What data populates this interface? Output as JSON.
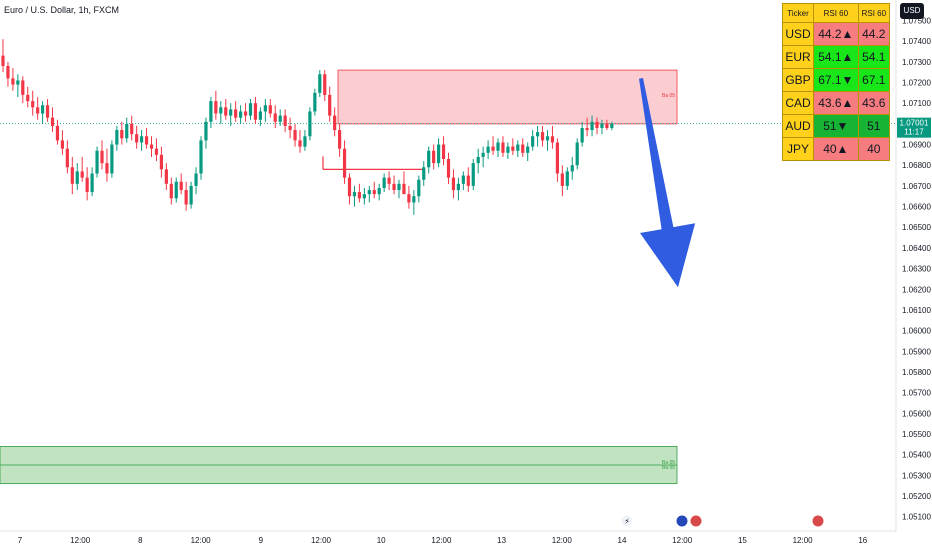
{
  "symbol_title": "Euro / U.S. Dollar, 1h, FXCM",
  "currency_button": "USD",
  "rsi_table": {
    "headers": [
      "Ticker",
      "RSI 60",
      "RSI 60"
    ],
    "rows": [
      {
        "ticker": "USD",
        "rsi1": "44.2▲",
        "rsi2": "44.2",
        "color": "red"
      },
      {
        "ticker": "EUR",
        "rsi1": "54.1▲",
        "rsi2": "54.1",
        "color": "lime"
      },
      {
        "ticker": "GBP",
        "rsi1": "67.1▼",
        "rsi2": "67.1",
        "color": "lime"
      },
      {
        "ticker": "CAD",
        "rsi1": "43.6▲",
        "rsi2": "43.6",
        "color": "red"
      },
      {
        "ticker": "AUD",
        "rsi1": "51▼",
        "rsi2": "51",
        "color": "green"
      },
      {
        "ticker": "JPY",
        "rsi1": "40▲",
        "rsi2": "40",
        "color": "red"
      }
    ]
  },
  "chart_data": {
    "type": "candlestick",
    "y_range": [
      1.0506,
      1.0757
    ],
    "y_ticks": [
      "1.07500",
      "1.07400",
      "1.07300",
      "1.07200",
      "1.07100",
      "1.06900",
      "1.06800",
      "1.06700",
      "1.06600",
      "1.06500",
      "1.06400",
      "1.06300",
      "1.06200",
      "1.06100",
      "1.06000",
      "1.05900",
      "1.05800",
      "1.05700",
      "1.05600",
      "1.05500",
      "1.05400",
      "1.05300",
      "1.05200",
      "1.05100"
    ],
    "x_ticks": [
      "7",
      "12:00",
      "8",
      "12:00",
      "9",
      "12:00",
      "10",
      "12:00",
      "13",
      "12:00",
      "14",
      "12:00",
      "15",
      "12:00",
      "16"
    ],
    "current_price": {
      "value": "1.07001",
      "countdown": "11:17",
      "level": 1.07001
    },
    "supply_zone": {
      "label": "Ba 05",
      "top": 1.0726,
      "bottom": 1.07
    },
    "demand_zone": {
      "labels": [
        "Ba 05",
        "Ba 05"
      ],
      "top": 1.0544,
      "bottom": 1.0526,
      "mid": 1.0535
    },
    "support_line": 1.0678,
    "arrow": {
      "from": 1.0722,
      "to": 1.0621
    },
    "candles": [
      {
        "o": 1.0733,
        "h": 1.0741,
        "l": 1.0725,
        "c": 1.0728
      },
      {
        "o": 1.0728,
        "h": 1.073,
        "l": 1.0718,
        "c": 1.0722
      },
      {
        "o": 1.0722,
        "h": 1.0727,
        "l": 1.0716,
        "c": 1.0719
      },
      {
        "o": 1.0719,
        "h": 1.0724,
        "l": 1.0713,
        "c": 1.0721
      },
      {
        "o": 1.0721,
        "h": 1.0723,
        "l": 1.071,
        "c": 1.0714
      },
      {
        "o": 1.0714,
        "h": 1.0718,
        "l": 1.0708,
        "c": 1.0711
      },
      {
        "o": 1.0711,
        "h": 1.0716,
        "l": 1.0704,
        "c": 1.0708
      },
      {
        "o": 1.0708,
        "h": 1.0713,
        "l": 1.0702,
        "c": 1.0705
      },
      {
        "o": 1.0705,
        "h": 1.0711,
        "l": 1.07,
        "c": 1.0709
      },
      {
        "o": 1.0709,
        "h": 1.0712,
        "l": 1.0701,
        "c": 1.0703
      },
      {
        "o": 1.0703,
        "h": 1.0708,
        "l": 1.0696,
        "c": 1.0699
      },
      {
        "o": 1.0699,
        "h": 1.0702,
        "l": 1.069,
        "c": 1.0692
      },
      {
        "o": 1.0692,
        "h": 1.0697,
        "l": 1.0685,
        "c": 1.0688
      },
      {
        "o": 1.0688,
        "h": 1.0692,
        "l": 1.0676,
        "c": 1.0679
      },
      {
        "o": 1.0679,
        "h": 1.0684,
        "l": 1.0666,
        "c": 1.0671
      },
      {
        "o": 1.0671,
        "h": 1.0681,
        "l": 1.0668,
        "c": 1.0677
      },
      {
        "o": 1.0677,
        "h": 1.0684,
        "l": 1.0672,
        "c": 1.0674
      },
      {
        "o": 1.0674,
        "h": 1.0679,
        "l": 1.0663,
        "c": 1.0667
      },
      {
        "o": 1.0667,
        "h": 1.0679,
        "l": 1.0665,
        "c": 1.0676
      },
      {
        "o": 1.0676,
        "h": 1.0689,
        "l": 1.0674,
        "c": 1.0687
      },
      {
        "o": 1.0687,
        "h": 1.0692,
        "l": 1.0678,
        "c": 1.0681
      },
      {
        "o": 1.0681,
        "h": 1.0688,
        "l": 1.0672,
        "c": 1.0676
      },
      {
        "o": 1.0676,
        "h": 1.0692,
        "l": 1.0674,
        "c": 1.069
      },
      {
        "o": 1.069,
        "h": 1.0699,
        "l": 1.0687,
        "c": 1.0697
      },
      {
        "o": 1.0697,
        "h": 1.0701,
        "l": 1.069,
        "c": 1.0693
      },
      {
        "o": 1.0693,
        "h": 1.0703,
        "l": 1.0691,
        "c": 1.07
      },
      {
        "o": 1.07,
        "h": 1.0704,
        "l": 1.0692,
        "c": 1.0695
      },
      {
        "o": 1.0695,
        "h": 1.0699,
        "l": 1.0688,
        "c": 1.0691
      },
      {
        "o": 1.0691,
        "h": 1.0697,
        "l": 1.0687,
        "c": 1.0694
      },
      {
        "o": 1.0694,
        "h": 1.0698,
        "l": 1.0688,
        "c": 1.069
      },
      {
        "o": 1.069,
        "h": 1.0694,
        "l": 1.0684,
        "c": 1.0688
      },
      {
        "o": 1.0688,
        "h": 1.0693,
        "l": 1.0682,
        "c": 1.0685
      },
      {
        "o": 1.0685,
        "h": 1.0689,
        "l": 1.0674,
        "c": 1.0678
      },
      {
        "o": 1.0678,
        "h": 1.0681,
        "l": 1.0668,
        "c": 1.0671
      },
      {
        "o": 1.0671,
        "h": 1.0674,
        "l": 1.0661,
        "c": 1.0664
      },
      {
        "o": 1.0664,
        "h": 1.0674,
        "l": 1.0662,
        "c": 1.0672
      },
      {
        "o": 1.0672,
        "h": 1.0676,
        "l": 1.0666,
        "c": 1.0668
      },
      {
        "o": 1.0668,
        "h": 1.0672,
        "l": 1.0658,
        "c": 1.0661
      },
      {
        "o": 1.0661,
        "h": 1.0672,
        "l": 1.0659,
        "c": 1.067
      },
      {
        "o": 1.067,
        "h": 1.0679,
        "l": 1.0666,
        "c": 1.0676
      },
      {
        "o": 1.0676,
        "h": 1.0694,
        "l": 1.0673,
        "c": 1.0692
      },
      {
        "o": 1.0692,
        "h": 1.0703,
        "l": 1.0688,
        "c": 1.0701
      },
      {
        "o": 1.0701,
        "h": 1.0713,
        "l": 1.0698,
        "c": 1.0711
      },
      {
        "o": 1.0711,
        "h": 1.0716,
        "l": 1.0702,
        "c": 1.0705
      },
      {
        "o": 1.0705,
        "h": 1.0711,
        "l": 1.07,
        "c": 1.0708
      },
      {
        "o": 1.0708,
        "h": 1.0712,
        "l": 1.0702,
        "c": 1.0704
      },
      {
        "o": 1.0704,
        "h": 1.071,
        "l": 1.0699,
        "c": 1.0707
      },
      {
        "o": 1.0707,
        "h": 1.0711,
        "l": 1.0701,
        "c": 1.0703
      },
      {
        "o": 1.0703,
        "h": 1.0709,
        "l": 1.07,
        "c": 1.0706
      },
      {
        "o": 1.0706,
        "h": 1.071,
        "l": 1.0701,
        "c": 1.0704
      },
      {
        "o": 1.0704,
        "h": 1.0712,
        "l": 1.0702,
        "c": 1.071
      },
      {
        "o": 1.071,
        "h": 1.0713,
        "l": 1.07,
        "c": 1.0702
      },
      {
        "o": 1.0702,
        "h": 1.0708,
        "l": 1.0699,
        "c": 1.0706
      },
      {
        "o": 1.0706,
        "h": 1.0712,
        "l": 1.0701,
        "c": 1.0709
      },
      {
        "o": 1.0709,
        "h": 1.0712,
        "l": 1.0703,
        "c": 1.0705
      },
      {
        "o": 1.0705,
        "h": 1.0709,
        "l": 1.0698,
        "c": 1.0701
      },
      {
        "o": 1.0701,
        "h": 1.0707,
        "l": 1.0699,
        "c": 1.0704
      },
      {
        "o": 1.0704,
        "h": 1.0707,
        "l": 1.0696,
        "c": 1.0699
      },
      {
        "o": 1.0699,
        "h": 1.0703,
        "l": 1.0693,
        "c": 1.0697
      },
      {
        "o": 1.0697,
        "h": 1.07,
        "l": 1.0689,
        "c": 1.0692
      },
      {
        "o": 1.0692,
        "h": 1.0697,
        "l": 1.0686,
        "c": 1.0689
      },
      {
        "o": 1.0689,
        "h": 1.0697,
        "l": 1.0687,
        "c": 1.0694
      },
      {
        "o": 1.0694,
        "h": 1.0708,
        "l": 1.0692,
        "c": 1.0706
      },
      {
        "o": 1.0706,
        "h": 1.0717,
        "l": 1.0704,
        "c": 1.0715
      },
      {
        "o": 1.0715,
        "h": 1.0726,
        "l": 1.0713,
        "c": 1.0724
      },
      {
        "o": 1.0724,
        "h": 1.0726,
        "l": 1.0711,
        "c": 1.0714
      },
      {
        "o": 1.0714,
        "h": 1.0718,
        "l": 1.0701,
        "c": 1.0704
      },
      {
        "o": 1.0704,
        "h": 1.0708,
        "l": 1.0694,
        "c": 1.0697
      },
      {
        "o": 1.0697,
        "h": 1.07,
        "l": 1.0684,
        "c": 1.0688
      },
      {
        "o": 1.0688,
        "h": 1.0692,
        "l": 1.0671,
        "c": 1.0674
      },
      {
        "o": 1.0674,
        "h": 1.0676,
        "l": 1.0661,
        "c": 1.0665
      },
      {
        "o": 1.0665,
        "h": 1.067,
        "l": 1.066,
        "c": 1.0667
      },
      {
        "o": 1.0667,
        "h": 1.0671,
        "l": 1.0662,
        "c": 1.0664
      },
      {
        "o": 1.0664,
        "h": 1.0669,
        "l": 1.0661,
        "c": 1.0666
      },
      {
        "o": 1.0666,
        "h": 1.067,
        "l": 1.0662,
        "c": 1.0668
      },
      {
        "o": 1.0668,
        "h": 1.0672,
        "l": 1.0664,
        "c": 1.0666
      },
      {
        "o": 1.0666,
        "h": 1.0671,
        "l": 1.0663,
        "c": 1.0669
      },
      {
        "o": 1.0669,
        "h": 1.0676,
        "l": 1.0667,
        "c": 1.0674
      },
      {
        "o": 1.0674,
        "h": 1.0677,
        "l": 1.0668,
        "c": 1.0671
      },
      {
        "o": 1.0671,
        "h": 1.0675,
        "l": 1.0666,
        "c": 1.0668
      },
      {
        "o": 1.0668,
        "h": 1.0673,
        "l": 1.0664,
        "c": 1.0671
      },
      {
        "o": 1.0671,
        "h": 1.0677,
        "l": 1.0668,
        "c": 1.0666
      },
      {
        "o": 1.0666,
        "h": 1.067,
        "l": 1.0659,
        "c": 1.0662
      },
      {
        "o": 1.0662,
        "h": 1.0668,
        "l": 1.0656,
        "c": 1.0665
      },
      {
        "o": 1.0665,
        "h": 1.0675,
        "l": 1.0662,
        "c": 1.0673
      },
      {
        "o": 1.0673,
        "h": 1.0682,
        "l": 1.067,
        "c": 1.0679
      },
      {
        "o": 1.0679,
        "h": 1.0689,
        "l": 1.0676,
        "c": 1.0687
      },
      {
        "o": 1.0687,
        "h": 1.069,
        "l": 1.0678,
        "c": 1.0681
      },
      {
        "o": 1.0681,
        "h": 1.0693,
        "l": 1.0679,
        "c": 1.069
      },
      {
        "o": 1.069,
        "h": 1.0694,
        "l": 1.068,
        "c": 1.0683
      },
      {
        "o": 1.0683,
        "h": 1.0686,
        "l": 1.0671,
        "c": 1.0674
      },
      {
        "o": 1.0674,
        "h": 1.0678,
        "l": 1.0664,
        "c": 1.0668
      },
      {
        "o": 1.0668,
        "h": 1.0674,
        "l": 1.0663,
        "c": 1.0671
      },
      {
        "o": 1.0671,
        "h": 1.0677,
        "l": 1.0668,
        "c": 1.0675
      },
      {
        "o": 1.0675,
        "h": 1.0679,
        "l": 1.0667,
        "c": 1.067
      },
      {
        "o": 1.067,
        "h": 1.0683,
        "l": 1.0668,
        "c": 1.0681
      },
      {
        "o": 1.0681,
        "h": 1.0688,
        "l": 1.0676,
        "c": 1.0684
      },
      {
        "o": 1.0684,
        "h": 1.0689,
        "l": 1.0679,
        "c": 1.0686
      },
      {
        "o": 1.0686,
        "h": 1.0692,
        "l": 1.0683,
        "c": 1.0689
      },
      {
        "o": 1.0689,
        "h": 1.0694,
        "l": 1.0685,
        "c": 1.0687
      },
      {
        "o": 1.0687,
        "h": 1.0693,
        "l": 1.0684,
        "c": 1.0691
      },
      {
        "o": 1.0691,
        "h": 1.0694,
        "l": 1.0684,
        "c": 1.0686
      },
      {
        "o": 1.0686,
        "h": 1.0691,
        "l": 1.0683,
        "c": 1.0689
      },
      {
        "o": 1.0689,
        "h": 1.0693,
        "l": 1.0685,
        "c": 1.0687
      },
      {
        "o": 1.0687,
        "h": 1.0692,
        "l": 1.0684,
        "c": 1.069
      },
      {
        "o": 1.069,
        "h": 1.0693,
        "l": 1.0684,
        "c": 1.0686
      },
      {
        "o": 1.0686,
        "h": 1.0691,
        "l": 1.0682,
        "c": 1.0689
      },
      {
        "o": 1.0689,
        "h": 1.0697,
        "l": 1.0687,
        "c": 1.0694
      },
      {
        "o": 1.0694,
        "h": 1.0699,
        "l": 1.0689,
        "c": 1.0696
      },
      {
        "o": 1.0696,
        "h": 1.0699,
        "l": 1.0689,
        "c": 1.0692
      },
      {
        "o": 1.0692,
        "h": 1.0697,
        "l": 1.0687,
        "c": 1.0694
      },
      {
        "o": 1.0694,
        "h": 1.0699,
        "l": 1.0688,
        "c": 1.0691
      },
      {
        "o": 1.0691,
        "h": 1.0693,
        "l": 1.0672,
        "c": 1.0676
      },
      {
        "o": 1.0676,
        "h": 1.068,
        "l": 1.0665,
        "c": 1.067
      },
      {
        "o": 1.067,
        "h": 1.0679,
        "l": 1.0668,
        "c": 1.0677
      },
      {
        "o": 1.0677,
        "h": 1.0684,
        "l": 1.0673,
        "c": 1.068
      },
      {
        "o": 1.068,
        "h": 1.0693,
        "l": 1.0678,
        "c": 1.0691
      },
      {
        "o": 1.0691,
        "h": 1.0701,
        "l": 1.0689,
        "c": 1.0698
      },
      {
        "o": 1.0698,
        "h": 1.0703,
        "l": 1.0694,
        "c": 1.0697
      },
      {
        "o": 1.0697,
        "h": 1.0704,
        "l": 1.0694,
        "c": 1.0701
      },
      {
        "o": 1.0701,
        "h": 1.0703,
        "l": 1.0695,
        "c": 1.0698
      },
      {
        "o": 1.0698,
        "h": 1.0702,
        "l": 1.0695,
        "c": 1.07
      },
      {
        "o": 1.07,
        "h": 1.0702,
        "l": 1.0697,
        "c": 1.0698
      },
      {
        "o": 1.0698,
        "h": 1.0701,
        "l": 1.0697,
        "c": 1.07
      }
    ]
  }
}
